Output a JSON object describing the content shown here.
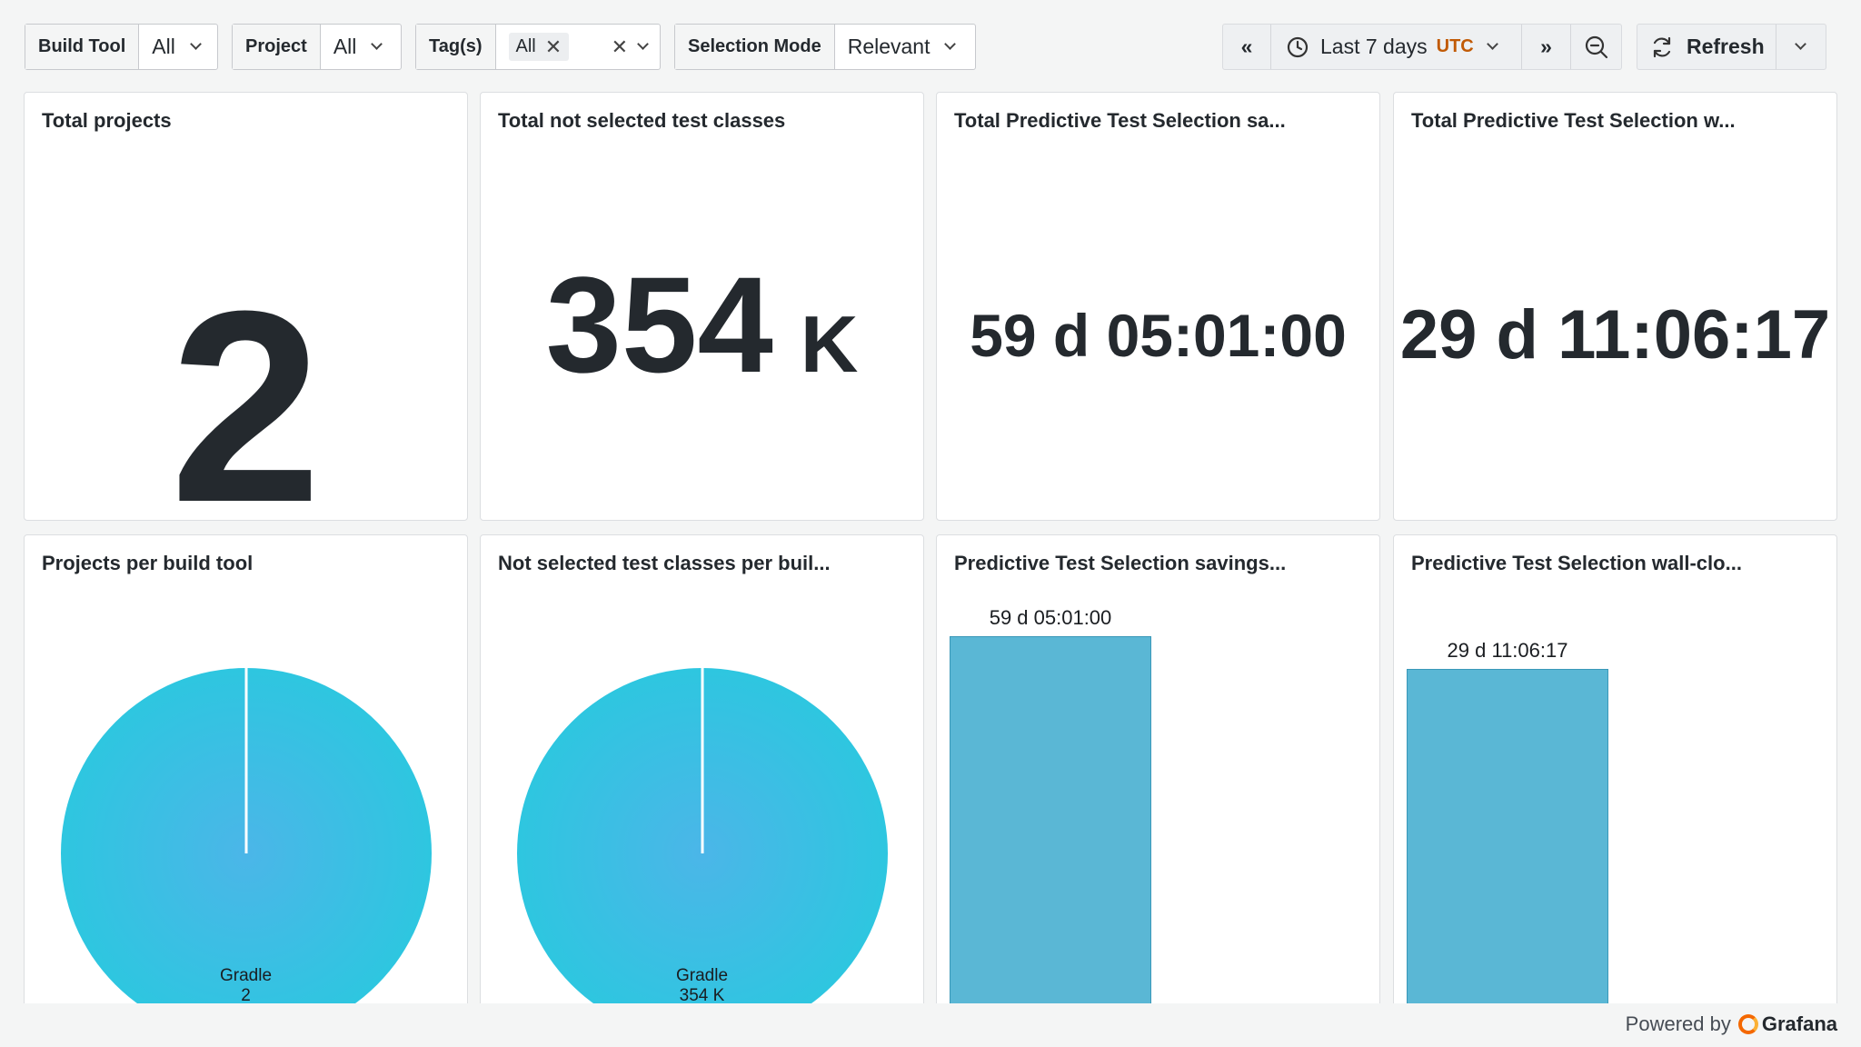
{
  "variables": [
    {
      "label": "Build Tool",
      "value": "All"
    },
    {
      "label": "Project",
      "value": "All"
    },
    {
      "label": "Tag(s)",
      "value": "All"
    },
    {
      "label": "Selection Mode",
      "value": "Relevant"
    }
  ],
  "time": {
    "range": "Last 7 days",
    "zone": "UTC",
    "refresh": "Refresh"
  },
  "panels": {
    "total_projects": {
      "title": "Total projects",
      "value": "2"
    },
    "total_not_selected": {
      "title": "Total not selected test classes",
      "value": "354",
      "unit": "K"
    },
    "pts_savings_total": {
      "title": "Total Predictive Test Selection sa...",
      "value": "59 d 05:01:00"
    },
    "pts_wall_total": {
      "title": "Total Predictive Test Selection w...",
      "value": "29 d 11:06:17"
    },
    "projects_per_tool": {
      "title": "Projects per build tool",
      "slice_label": "Gradle",
      "slice_value": "2"
    },
    "not_selected_per_tool": {
      "title": "Not selected test classes per buil...",
      "slice_label": "Gradle",
      "slice_value": "354 K"
    },
    "pts_savings": {
      "title": "Predictive Test Selection savings...",
      "bar_label": "59 d 05:01:00"
    },
    "pts_wall": {
      "title": "Predictive Test Selection wall-clo...",
      "bar_label": "29 d 11:06:17"
    }
  },
  "colors": {
    "pie": "#2ec6e0",
    "pie_center": "#4bb6e8",
    "bar": "#5ab7d5",
    "bar_border": "#3a98b8",
    "utc": "#c15a05"
  },
  "footer": {
    "powered": "Powered by",
    "brand": "Grafana"
  }
}
